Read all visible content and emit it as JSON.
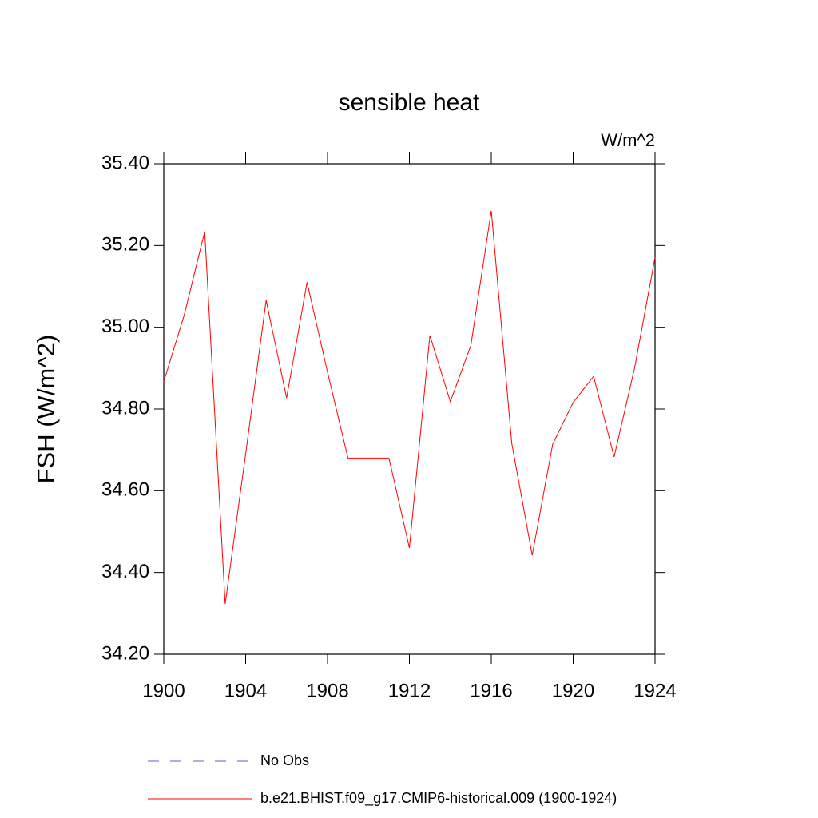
{
  "chart_data": {
    "type": "line",
    "title": "sensible heat",
    "units": "W/m^2",
    "y_label": "FSH  (W/m^2)",
    "x": [
      1900,
      1901,
      1902,
      1903,
      1904,
      1905,
      1906,
      1907,
      1908,
      1909,
      1910,
      1911,
      1912,
      1913,
      1914,
      1915,
      1916,
      1917,
      1918,
      1919,
      1920,
      1921,
      1922,
      1923,
      1924
    ],
    "series": [
      {
        "name": "No Obs",
        "color": "#6a5acd",
        "dashed": true,
        "values": [
          null,
          null,
          null,
          null,
          null,
          null,
          null,
          null,
          null,
          null,
          null,
          null,
          null,
          null,
          null,
          null,
          null,
          null,
          null,
          null,
          null,
          null,
          null,
          null,
          null
        ]
      },
      {
        "name": "b.e21.BHIST.f09_g17.CMIP6-historical.009 (1900-1924)",
        "color": "#ff0000",
        "dashed": false,
        "values": [
          34.867,
          35.03,
          35.234,
          34.323,
          34.69,
          35.066,
          34.827,
          35.11,
          34.89,
          34.68,
          34.68,
          34.68,
          34.46,
          34.98,
          34.818,
          34.955,
          35.285,
          34.716,
          34.442,
          34.714,
          34.816,
          34.88,
          34.683,
          34.9,
          35.171
        ]
      }
    ],
    "xlim": [
      1900,
      1924
    ],
    "xticks": [
      1900,
      1904,
      1908,
      1912,
      1916,
      1920,
      1924
    ],
    "ylim": [
      34.2,
      35.4
    ],
    "yticks": [
      {
        "value": 34.2,
        "label": "34.20"
      },
      {
        "value": 34.4,
        "label": "34.40"
      },
      {
        "value": 34.6,
        "label": "34.60"
      },
      {
        "value": 34.8,
        "label": "34.80"
      },
      {
        "value": 35.0,
        "label": "35.00"
      },
      {
        "value": 35.2,
        "label": "35.20"
      },
      {
        "value": 35.4,
        "label": "35.40"
      }
    ]
  }
}
